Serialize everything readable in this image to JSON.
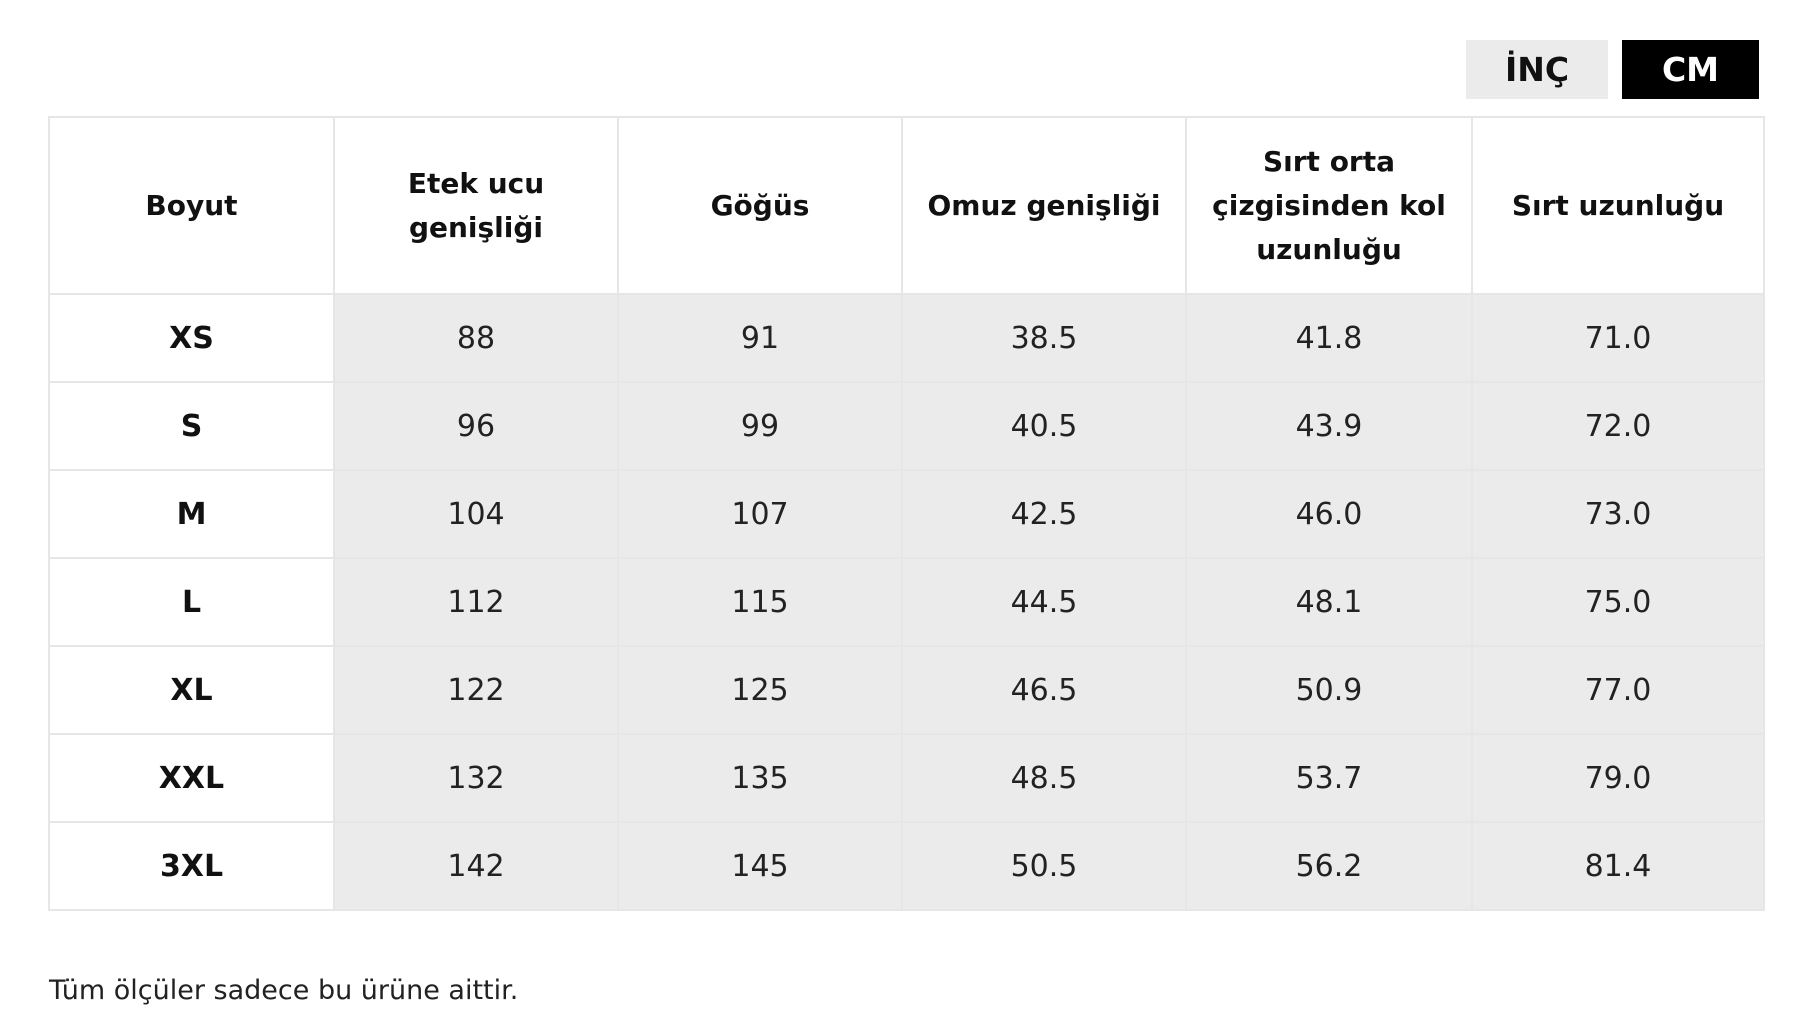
{
  "unit_toggle": {
    "options": [
      {
        "label": "İNÇ",
        "selected": false
      },
      {
        "label": "CM",
        "selected": true
      }
    ],
    "active_color": "#000000",
    "inactive_color": "#ebebeb"
  },
  "size_table": {
    "headers": [
      "Boyut",
      "Etek ucu genişliği",
      "Göğüs",
      "Omuz genişliği",
      "Sırt orta çizgisinden kol uzunluğu",
      "Sırt uzunluğu"
    ],
    "rows": [
      {
        "size": "XS",
        "values": [
          "88",
          "91",
          "38.5",
          "41.8",
          "71.0"
        ]
      },
      {
        "size": "S",
        "values": [
          "96",
          "99",
          "40.5",
          "43.9",
          "72.0"
        ]
      },
      {
        "size": "M",
        "values": [
          "104",
          "107",
          "42.5",
          "46.0",
          "73.0"
        ]
      },
      {
        "size": "L",
        "values": [
          "112",
          "115",
          "44.5",
          "48.1",
          "75.0"
        ]
      },
      {
        "size": "XL",
        "values": [
          "122",
          "125",
          "46.5",
          "50.9",
          "77.0"
        ]
      },
      {
        "size": "XXL",
        "values": [
          "132",
          "135",
          "48.5",
          "53.7",
          "79.0"
        ]
      },
      {
        "size": "3XL",
        "values": [
          "142",
          "145",
          "50.5",
          "56.2",
          "81.4"
        ]
      }
    ],
    "value_cell_color": "#ebebeb",
    "border_color": "#e6e6e6"
  },
  "footnote": "Tüm ölçüler sadece bu ürüne aittir."
}
